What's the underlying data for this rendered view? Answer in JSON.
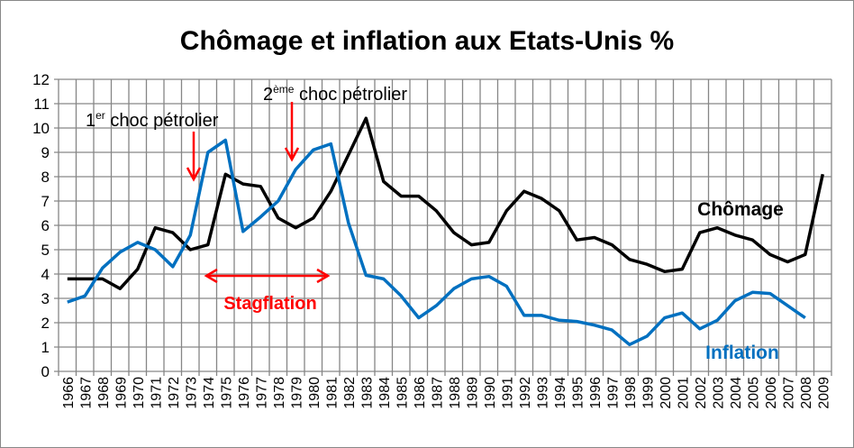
{
  "chart_data": {
    "type": "line",
    "title": "Chômage et inflation aux Etats-Unis  %",
    "xlabel": "",
    "ylabel": "",
    "ylim": [
      0,
      12
    ],
    "yticks": [
      "0",
      "1",
      "2",
      "3",
      "4",
      "5",
      "6",
      "7",
      "8",
      "9",
      "10",
      "11",
      "12"
    ],
    "grid": true,
    "categories": [
      "1966",
      "1967",
      "1968",
      "1969",
      "1970",
      "1971",
      "1972",
      "1973",
      "1974",
      "1975",
      "1976",
      "1977",
      "1978",
      "1979",
      "1980",
      "1981",
      "1982",
      "1983",
      "1984",
      "1985",
      "1986",
      "1987",
      "1988",
      "1989",
      "1990",
      "1991",
      "1992",
      "1993",
      "1994",
      "1995",
      "1996",
      "1997",
      "1998",
      "1999",
      "2000",
      "2001",
      "2002",
      "2003",
      "2004",
      "2005",
      "2006",
      "2007",
      "2008",
      "2009"
    ],
    "series": [
      {
        "name": "Chômage",
        "color": "#000000",
        "values": [
          3.8,
          3.8,
          3.8,
          3.4,
          4.2,
          5.9,
          5.7,
          5.0,
          5.2,
          8.1,
          7.7,
          7.6,
          6.3,
          5.9,
          6.3,
          7.4,
          8.9,
          10.4,
          7.8,
          7.2,
          7.2,
          6.6,
          5.7,
          5.2,
          5.3,
          6.6,
          7.4,
          7.1,
          6.6,
          5.4,
          5.5,
          5.2,
          4.6,
          4.4,
          4.1,
          4.2,
          5.7,
          5.9,
          5.6,
          5.4,
          4.8,
          4.5,
          4.8,
          8.1
        ]
      },
      {
        "name": "Inflation",
        "color": "#0070C0",
        "values": [
          2.85,
          3.1,
          4.25,
          4.9,
          5.3,
          5.0,
          4.3,
          5.6,
          9.0,
          9.5,
          5.75,
          6.35,
          7.0,
          8.3,
          9.1,
          9.35,
          6.1,
          3.95,
          3.8,
          3.1,
          2.2,
          2.7,
          3.4,
          3.8,
          3.9,
          3.5,
          2.3,
          2.3,
          2.1,
          2.05,
          1.9,
          1.7,
          1.1,
          1.45,
          2.2,
          2.4,
          1.75,
          2.1,
          2.9,
          3.25,
          3.2,
          2.7,
          2.2,
          null
        ]
      }
    ],
    "annotations": {
      "choc1": {
        "num": "1",
        "sup": "er",
        "text": " choc pétrolier"
      },
      "choc2": {
        "num": "2",
        "sup": "ème",
        "text": " choc pétrolier"
      },
      "stagflation": "Stagflation",
      "accent_color": "#FF0000"
    }
  }
}
